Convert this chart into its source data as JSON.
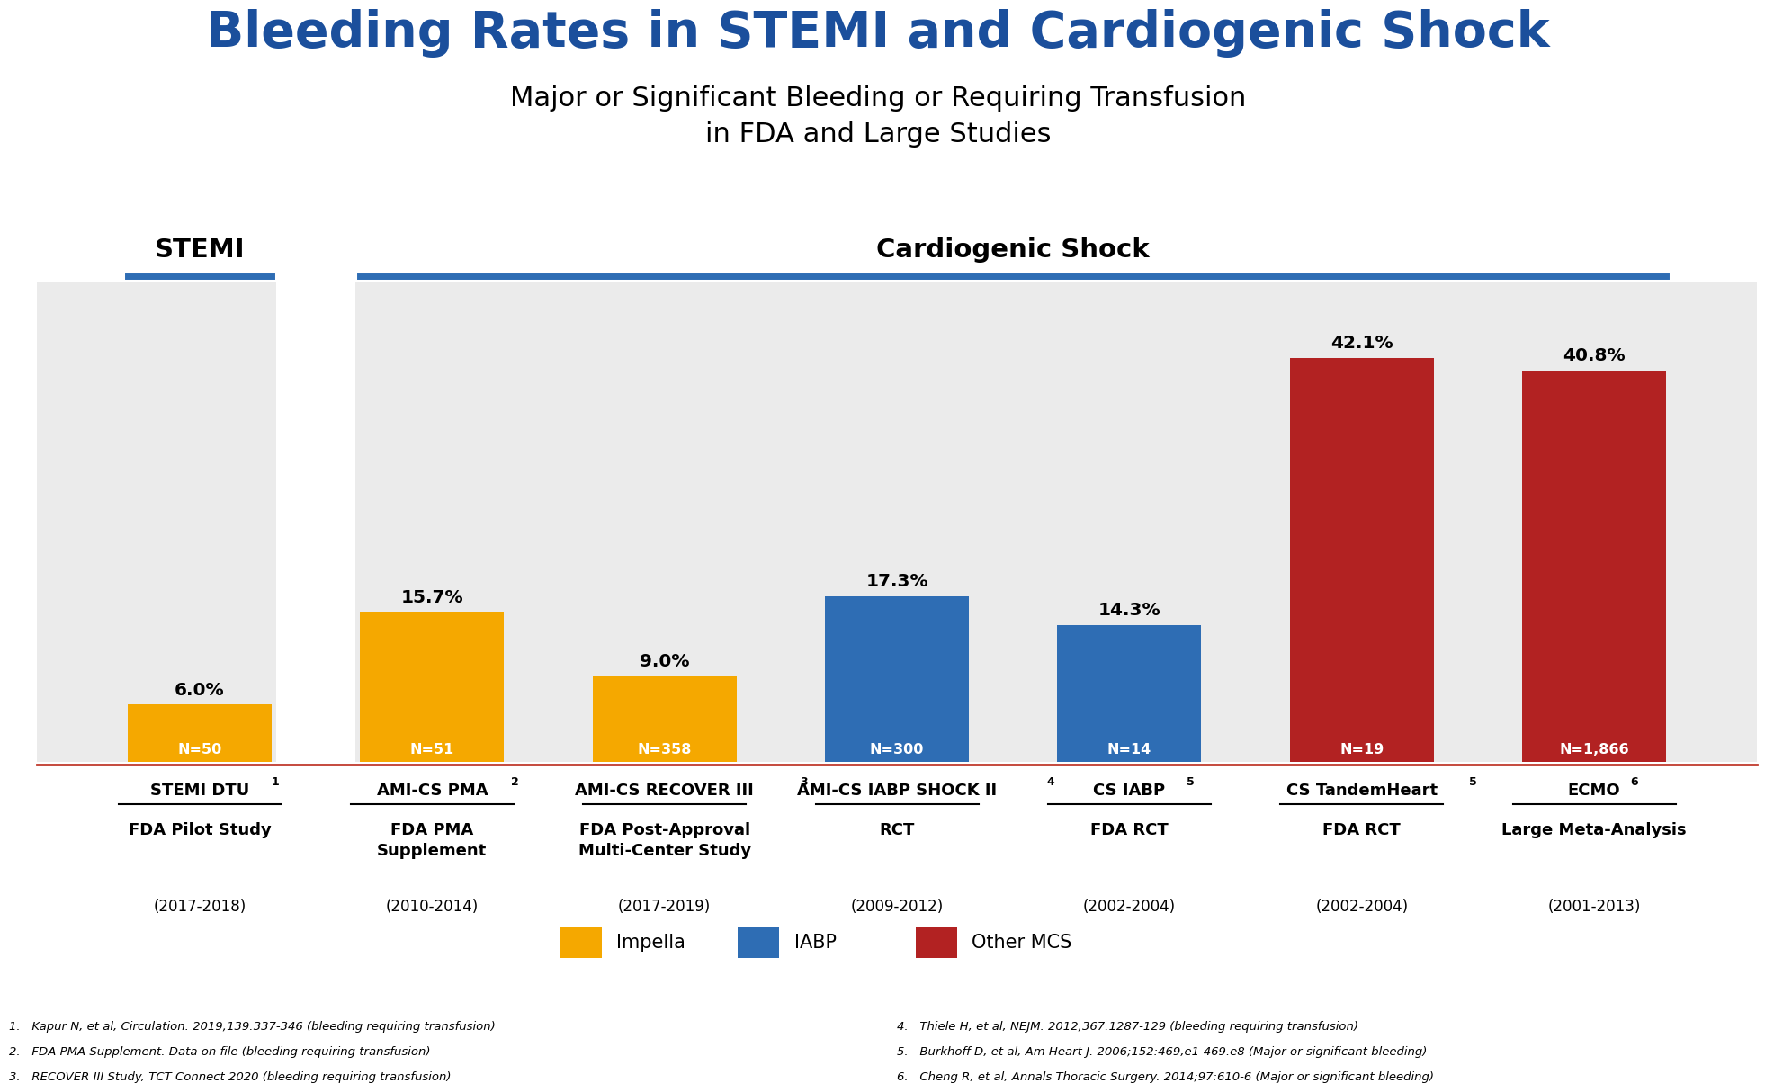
{
  "title_main": "Bleeding Rates in STEMI and Cardiogenic Shock",
  "title_sub1": "Major or Significant Bleeding or Requiring Transfusion",
  "title_sub2": "in FDA and Large Studies",
  "title_color": "#1B4F9C",
  "title_main_fontsize": 40,
  "title_sub_fontsize": 22,
  "bars": [
    {
      "label": "STEMI DTU",
      "value": 6.0,
      "color": "#F5A800",
      "n": "N=50",
      "group": "STEMI"
    },
    {
      "label": "AMI-CS PMA",
      "value": 15.7,
      "color": "#F5A800",
      "n": "N=51",
      "group": "CS"
    },
    {
      "label": "AMI-CS RECOVER III",
      "value": 9.0,
      "color": "#F5A800",
      "n": "N=358",
      "group": "CS"
    },
    {
      "label": "AMI-CS IABP SHOCK II",
      "value": 17.3,
      "color": "#2E6DB4",
      "n": "N=300",
      "group": "CS"
    },
    {
      "label": "CS IABP",
      "value": 14.3,
      "color": "#2E6DB4",
      "n": "N=14",
      "group": "CS"
    },
    {
      "label": "CS TandemHeart",
      "value": 42.1,
      "color": "#B22222",
      "n": "N=19",
      "group": "CS"
    },
    {
      "label": "ECMO",
      "value": 40.8,
      "color": "#B22222",
      "n": "N=1,866",
      "group": "CS"
    }
  ],
  "bar_width": 0.62,
  "ylim": [
    0,
    50
  ],
  "plot_bg_color": "#EBEBEB",
  "outer_bg_color": "#FFFFFF",
  "stemi_section_label": "STEMI",
  "cs_section_label": "Cardiogenic Shock",
  "section_label_fontsize": 21,
  "section_divider_color": "#2E6DB4",
  "legend_items": [
    {
      "label": "Impella",
      "color": "#F5A800"
    },
    {
      "label": "IABP",
      "color": "#2E6DB4"
    },
    {
      "label": "Other MCS",
      "color": "#B22222"
    }
  ],
  "xlabel_data": [
    {
      "bar_idx": 0,
      "name": "STEMI DTU",
      "sup": "1",
      "study": "FDA Pilot Study",
      "years": "(2017-2018)"
    },
    {
      "bar_idx": 1,
      "name": "AMI-CS PMA",
      "sup": "2",
      "study": "FDA PMA\nSupplement",
      "years": "(2010-2014)"
    },
    {
      "bar_idx": 2,
      "name": "AMI-CS RECOVER III",
      "sup": "3",
      "study": "FDA Post-Approval\nMulti-Center Study",
      "years": "(2017-2019)"
    },
    {
      "bar_idx": 3,
      "name": "AMI-CS IABP SHOCK II",
      "sup": "4",
      "study": "RCT",
      "years": "(2009-2012)"
    },
    {
      "bar_idx": 4,
      "name": "CS IABP",
      "sup": "5",
      "study": "FDA RCT",
      "years": "(2002-2004)"
    },
    {
      "bar_idx": 5,
      "name": "CS TandemHeart",
      "sup": "5",
      "study": "FDA RCT",
      "years": "(2002-2004)"
    },
    {
      "bar_idx": 6,
      "name": "ECMO",
      "sup": "6",
      "study": "Large Meta-Analysis",
      "years": "(2001-2013)"
    }
  ],
  "footnotes_left": [
    "1.   Kapur N, et al, Circulation. 2019;139:337-346 (bleeding requiring transfusion)",
    "2.   FDA PMA Supplement. Data on file (bleeding requiring transfusion)",
    "3.   RECOVER III Study, TCT Connect 2020 (bleeding requiring transfusion)"
  ],
  "footnotes_right": [
    "4.   Thiele H, et al, NEJM. 2012;367:1287-129 (bleeding requiring transfusion)",
    "5.   Burkhoff D, et al, Am Heart J. 2006;152:469,e1-469.e8 (Major or significant bleeding)",
    "6.   Cheng R, et al, Annals Thoracic Surgery. 2014;97:610-6 (Major or significant bleeding)"
  ]
}
